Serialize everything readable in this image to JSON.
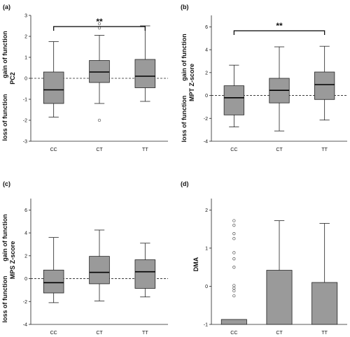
{
  "chart_data": [
    {
      "type": "box",
      "panel_label": "(a)",
      "categories": [
        "CC",
        "CT",
        "TT"
      ],
      "ylabel": "PC2",
      "side_labels": {
        "upper": "gain of function",
        "lower": "loss of function"
      },
      "ylim": [
        -3,
        3
      ],
      "yticks": [
        "-3",
        "-2",
        "-1",
        "0",
        "1",
        "2",
        "3"
      ],
      "reference_line": 0,
      "boxes": [
        {
          "category": "CC",
          "whisker_low": -1.85,
          "q1": -1.2,
          "median": -0.55,
          "q3": 0.3,
          "whisker_high": 1.75
        },
        {
          "category": "CT",
          "whisker_low": -1.2,
          "q1": -0.2,
          "median": 0.3,
          "q3": 0.85,
          "whisker_high": 2.05
        },
        {
          "category": "TT",
          "whisker_low": -1.1,
          "q1": -0.45,
          "median": 0.1,
          "q3": 0.9,
          "whisker_high": 2.5
        }
      ],
      "outliers": [
        {
          "category": "CT",
          "y": 2.6
        },
        {
          "category": "CT",
          "y": 2.4
        },
        {
          "category": "CT",
          "y": -2.0
        }
      ],
      "significance": {
        "from": "CC",
        "to": "TT",
        "label": "**"
      }
    },
    {
      "type": "box",
      "panel_label": "(b)",
      "categories": [
        "CC",
        "CT",
        "TT"
      ],
      "ylabel": "MPT Z-score",
      "side_labels": {
        "upper": "gain of function",
        "lower": "loss of function"
      },
      "ylim": [
        -4,
        7
      ],
      "yticks": [
        "-4",
        "-2",
        "0",
        "2",
        "4",
        "6"
      ],
      "reference_line": 0,
      "boxes": [
        {
          "category": "CC",
          "whisker_low": -2.75,
          "q1": -1.7,
          "median": -0.2,
          "q3": 0.85,
          "whisker_high": 2.65
        },
        {
          "category": "CT",
          "whisker_low": -3.1,
          "q1": -0.65,
          "median": 0.45,
          "q3": 1.5,
          "whisker_high": 4.25
        },
        {
          "category": "TT",
          "whisker_low": -2.15,
          "q1": -0.35,
          "median": 0.95,
          "q3": 2.05,
          "whisker_high": 4.3
        }
      ],
      "outliers": [],
      "significance": {
        "from": "CC",
        "to": "TT",
        "label": "**"
      }
    },
    {
      "type": "box",
      "panel_label": "(c)",
      "categories": [
        "CC",
        "CT",
        "TT"
      ],
      "ylabel": "MPS Z-score",
      "side_labels": {
        "upper": "gain of function",
        "lower": "loss of function"
      },
      "ylim": [
        -4,
        7
      ],
      "yticks": [
        "-4",
        "-2",
        "0",
        "2",
        "4",
        "6"
      ],
      "reference_line": 0,
      "boxes": [
        {
          "category": "CC",
          "whisker_low": -2.1,
          "q1": -1.25,
          "median": -0.35,
          "q3": 0.75,
          "whisker_high": 3.6
        },
        {
          "category": "CT",
          "whisker_low": -1.95,
          "q1": -0.45,
          "median": 0.55,
          "q3": 1.95,
          "whisker_high": 4.25
        },
        {
          "category": "TT",
          "whisker_low": -1.6,
          "q1": -0.85,
          "median": 0.6,
          "q3": 1.65,
          "whisker_high": 3.1
        }
      ],
      "outliers": []
    },
    {
      "type": "bar",
      "panel_label": "(d)",
      "categories": [
        "CC",
        "CT",
        "TT"
      ],
      "ylabel": "DMA",
      "ylim": [
        -1,
        2.3
      ],
      "yticks": [
        "-1",
        "0",
        "1",
        "2"
      ],
      "values": [
        -0.87,
        0.42,
        0.1
      ],
      "error_upper": [
        null,
        1.72,
        1.65
      ],
      "outliers": [
        {
          "category": "CC",
          "y": 1.72
        },
        {
          "category": "CC",
          "y": 1.6
        },
        {
          "category": "CC",
          "y": 1.38
        },
        {
          "category": "CC",
          "y": 1.25
        },
        {
          "category": "CC",
          "y": 0.88
        },
        {
          "category": "CC",
          "y": 0.72
        },
        {
          "category": "CC",
          "y": 0.5
        },
        {
          "category": "CC",
          "y": 0.02
        },
        {
          "category": "CC",
          "y": -0.05
        },
        {
          "category": "CC",
          "y": -0.12
        },
        {
          "category": "CC",
          "y": -0.25
        }
      ]
    }
  ],
  "style": {
    "box_fill": "#9a9a9a",
    "line": "#222222",
    "outlier_stroke": "#555555"
  }
}
